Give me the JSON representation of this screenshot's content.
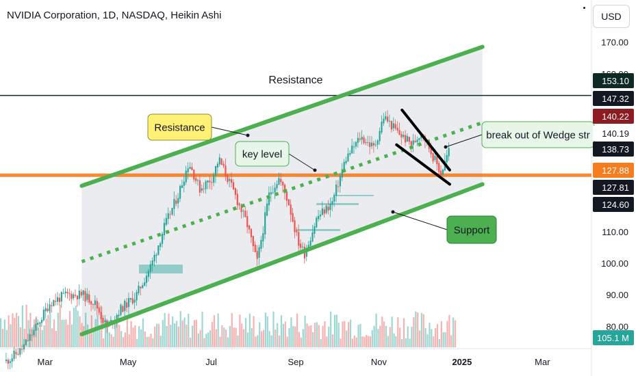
{
  "header": {
    "title": "NVIDIA Corporation, 1D, NASDAQ, Heikin Ashi",
    "currency": "USD"
  },
  "chart_data": {
    "type": "candlestick",
    "style": "Heikin Ashi",
    "symbol": "NVIDIA Corporation",
    "interval": "1D",
    "exchange": "NASDAQ",
    "ylim": [
      76,
      176
    ],
    "y_ticks": [
      "170.00",
      "160.00",
      "110.00",
      "100.00",
      "90.00",
      "80.00"
    ],
    "x_ticks": [
      "Mar",
      "May",
      "Jul",
      "Sep",
      "Nov",
      "2025",
      "Mar"
    ],
    "x_tick_dates": [
      "2024-03-01",
      "2024-05-01",
      "2024-07-01",
      "2024-09-01",
      "2024-11-01",
      "2025-01-01",
      "2025-03-01"
    ],
    "x_range": [
      "2024-02-01",
      "2025-04-10"
    ],
    "price_badges": [
      {
        "label": "153.10",
        "value": 153.1,
        "color": "#0d2a23"
      },
      {
        "label": "147.32",
        "value": 147.32,
        "color": "#131722"
      },
      {
        "label": "140.22",
        "value": 140.22,
        "color": "#8c1c22"
      },
      {
        "label": "140.19",
        "value": 140.19,
        "color": "#ffffff"
      },
      {
        "label": "138.73",
        "value": 138.73,
        "color": "#131722"
      },
      {
        "label": "127.88",
        "value": 127.88,
        "color": "#f57c1f"
      },
      {
        "label": "127.81",
        "value": 127.81,
        "color": "#131722"
      },
      {
        "label": "124.60",
        "value": 124.6,
        "color": "#131722"
      },
      {
        "label": "105.1 M",
        "value": 105.1,
        "color": "#26a69a"
      }
    ],
    "horizontal_lines": [
      {
        "name": "Resistance",
        "value": 153.1,
        "color": "#0d2a23"
      },
      {
        "name": "key level",
        "value": 127.88,
        "color": "#f57c1f"
      }
    ],
    "channel": {
      "upper": [
        [
          "2024-04-01",
          124.5
        ],
        [
          "2025-01-20",
          168.5
        ]
      ],
      "lower": [
        [
          "2024-04-01",
          77.5
        ],
        [
          "2025-01-20",
          125.0
        ]
      ],
      "middle": [
        [
          "2024-04-01",
          100.5
        ],
        [
          "2025-01-20",
          144.5
        ]
      ]
    },
    "wedge": {
      "upper": [
        [
          "2024-11-22",
          148.5
        ],
        [
          "2024-12-27",
          129.5
        ]
      ],
      "lower": [
        [
          "2024-11-18",
          137.5
        ],
        [
          "2024-12-27",
          125.0
        ]
      ]
    },
    "annotations": [
      {
        "text": "Resistance",
        "type": "callout"
      },
      {
        "text": "key level",
        "type": "callout"
      },
      {
        "text": "Support",
        "type": "callout"
      },
      {
        "text": "break out of Wedge str",
        "type": "callout"
      }
    ],
    "colors": {
      "up": "#26a69a",
      "down": "#ef5350",
      "channel": "#4caf50",
      "key_level": "#f57c1f",
      "resistance": "#0d2a23"
    },
    "prices": [
      {
        "date": "2024-02-05",
        "close": 69.0
      },
      {
        "date": "2024-02-16",
        "close": 72.5
      },
      {
        "date": "2024-02-26",
        "close": 79.0
      },
      {
        "date": "2024-03-08",
        "close": 87.5
      },
      {
        "date": "2024-03-20",
        "close": 90.0
      },
      {
        "date": "2024-04-01",
        "close": 90.0
      },
      {
        "date": "2024-04-10",
        "close": 87.5
      },
      {
        "date": "2024-04-19",
        "close": 79.5
      },
      {
        "date": "2024-04-29",
        "close": 85.5
      },
      {
        "date": "2024-05-10",
        "close": 89.5
      },
      {
        "date": "2024-05-22",
        "close": 100.0
      },
      {
        "date": "2024-05-31",
        "close": 111.5
      },
      {
        "date": "2024-06-10",
        "close": 121.5
      },
      {
        "date": "2024-06-18",
        "close": 132.0
      },
      {
        "date": "2024-06-26",
        "close": 123.5
      },
      {
        "date": "2024-07-05",
        "close": 127.0
      },
      {
        "date": "2024-07-10",
        "close": 133.0
      },
      {
        "date": "2024-07-22",
        "close": 121.5
      },
      {
        "date": "2024-07-31",
        "close": 112.0
      },
      {
        "date": "2024-08-07",
        "close": 100.0
      },
      {
        "date": "2024-08-16",
        "close": 122.0
      },
      {
        "date": "2024-08-23",
        "close": 127.0
      },
      {
        "date": "2024-08-30",
        "close": 119.5
      },
      {
        "date": "2024-09-06",
        "close": 107.0
      },
      {
        "date": "2024-09-11",
        "close": 103.0
      },
      {
        "date": "2024-09-20",
        "close": 114.5
      },
      {
        "date": "2024-10-01",
        "close": 119.0
      },
      {
        "date": "2024-10-11",
        "close": 133.0
      },
      {
        "date": "2024-10-22",
        "close": 140.0
      },
      {
        "date": "2024-11-01",
        "close": 136.5
      },
      {
        "date": "2024-11-08",
        "close": 146.5
      },
      {
        "date": "2024-11-18",
        "close": 141.5
      },
      {
        "date": "2024-11-29",
        "close": 137.5
      },
      {
        "date": "2024-12-06",
        "close": 142.0
      },
      {
        "date": "2024-12-13",
        "close": 135.0
      },
      {
        "date": "2024-12-20",
        "close": 128.5
      },
      {
        "date": "2024-12-27",
        "close": 137.0
      }
    ]
  }
}
